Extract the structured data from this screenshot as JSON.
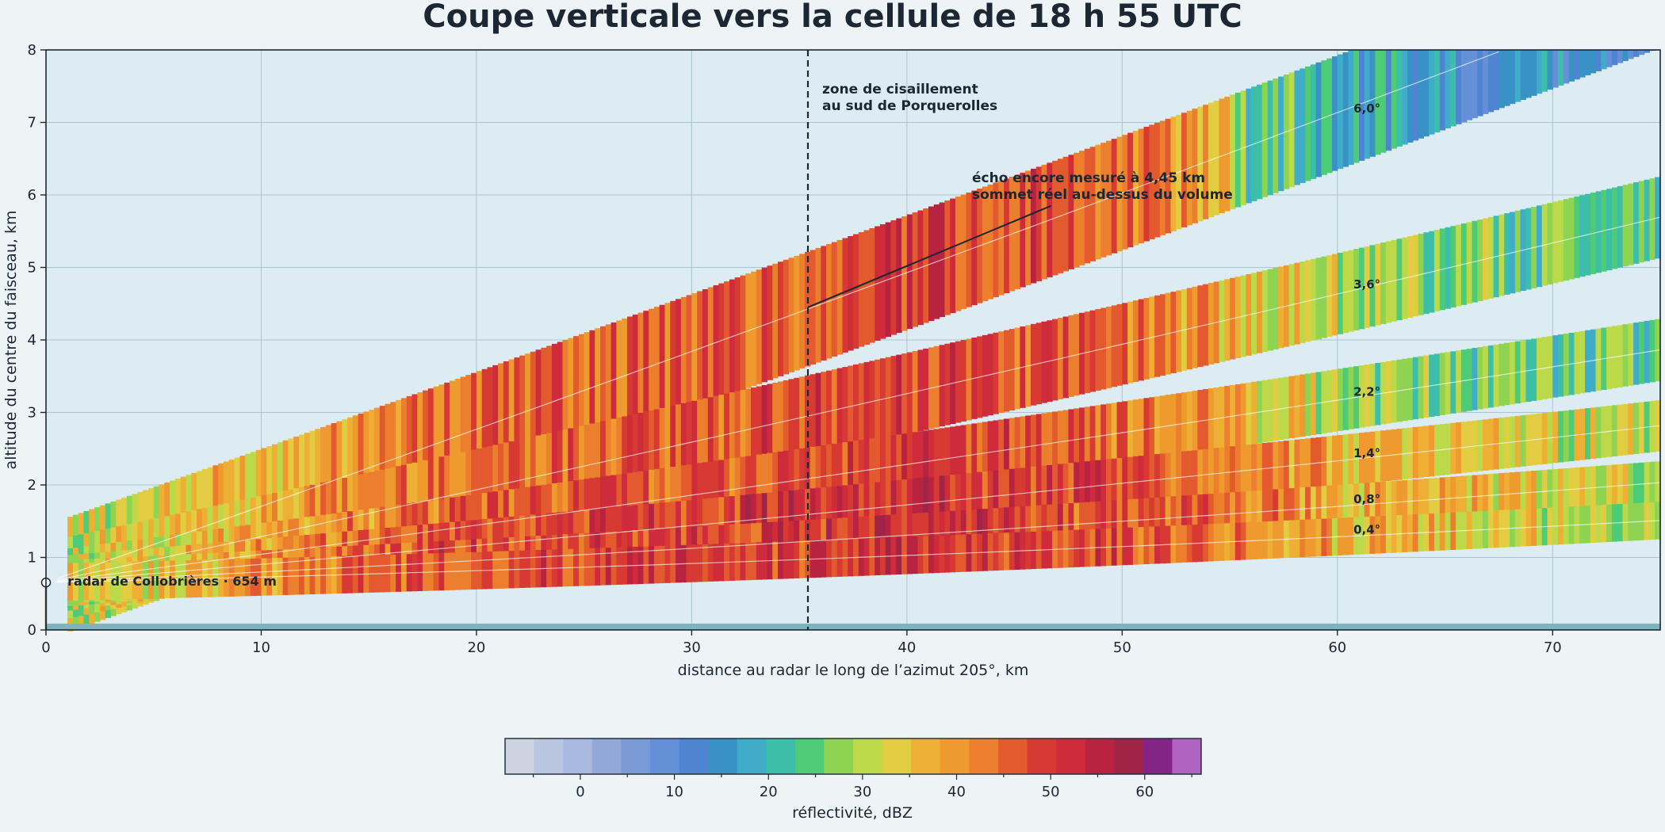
{
  "chart_data": {
    "type": "heatmap",
    "title": "Coupe verticale vers la cellule de 18 h 55 UTC",
    "xlabel": "distance au radar le long de l’azimut 205°, km",
    "ylabel": "altitude du centre du faisceau, km",
    "xlim": [
      0,
      75
    ],
    "ylim": [
      0,
      8
    ],
    "x_ticks": [
      0,
      10,
      20,
      30,
      40,
      50,
      60,
      70
    ],
    "y_ticks": [
      0,
      1,
      2,
      3,
      4,
      5,
      6,
      7,
      8
    ],
    "grid": true,
    "radar": {
      "label": "radar de Collobrières · 654 m",
      "altitude_km": 0.654
    },
    "elevations": [
      {
        "label": "0,4°",
        "deg": 0.4
      },
      {
        "label": "0,8°",
        "deg": 0.8
      },
      {
        "label": "1,4°",
        "deg": 1.4
      },
      {
        "label": "2,2°",
        "deg": 2.2
      },
      {
        "label": "3,6°",
        "deg": 3.6
      },
      {
        "label": "6,0°",
        "deg": 6.0
      }
    ],
    "reflectivity_profile_dbz": {
      "x_km": [
        0,
        5,
        10,
        15,
        20,
        25,
        30,
        35,
        40,
        45,
        50,
        55,
        60,
        65,
        70,
        75
      ],
      "low_beams": [
        31,
        34,
        40,
        46,
        48,
        49,
        49,
        51,
        51,
        50,
        47,
        44,
        38,
        36,
        32,
        30
      ],
      "upper_beams": [
        30,
        33,
        37,
        42,
        45,
        46,
        46,
        47,
        49,
        48,
        44,
        38,
        30,
        26,
        25,
        24
      ]
    },
    "annotations": [
      {
        "text": [
          "zone de cisaillement",
          "au sud de Porquerolles"
        ],
        "x_km": 35.4
      },
      {
        "text": [
          "écho encore mesuré à 4,45 km",
          "sommet réel au-dessus du volume"
        ],
        "x_km": 35.4,
        "y_km": 4.45
      }
    ],
    "colorbar": {
      "label": "réflectivité, dBZ",
      "vmin": -8,
      "vmax": 66,
      "tick_values": [
        0,
        10,
        20,
        30,
        40,
        50,
        60
      ],
      "colors": [
        "#cdd3e1",
        "#bac5e0",
        "#a9b9df",
        "#91a8d8",
        "#7a9bd6",
        "#658fd6",
        "#4f85d0",
        "#3892c6",
        "#41acc9",
        "#3dbea9",
        "#4ecb76",
        "#8ed352",
        "#bcd94a",
        "#e2cd42",
        "#eeb034",
        "#ef9a2e",
        "#ec7f2e",
        "#e25a2d",
        "#d63a32",
        "#cf2c3b",
        "#b8233f",
        "#a12446",
        "#832487",
        "#b064c2"
      ]
    },
    "colors": {
      "ground": "#7fb3c0",
      "background": "#dcecf2",
      "guide_line": "#1b2733"
    }
  }
}
